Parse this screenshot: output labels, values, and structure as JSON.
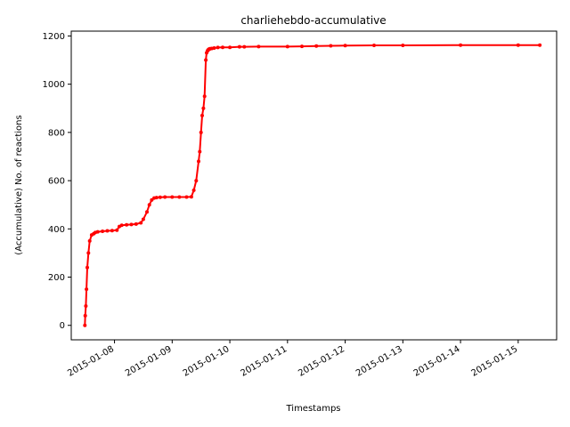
{
  "chart_data": {
    "type": "line",
    "title": "charliehebdo-accumulative",
    "xlabel": "Timestamps",
    "ylabel": "(Accumulative) No. of reactions",
    "x_tick_labels": [
      "2015-01-08",
      "2015-01-09",
      "2015-01-10",
      "2015-01-11",
      "2015-01-12",
      "2015-01-13",
      "2015-01-14",
      "2015-01-15"
    ],
    "y_ticks": [
      0,
      200,
      400,
      600,
      800,
      1000,
      1200
    ],
    "xlim": [
      "2015-01-07 06:00",
      "2015-01-15 16:00"
    ],
    "ylim": [
      -60,
      1220
    ],
    "grid": false,
    "legend": "none",
    "series": [
      {
        "color": "#ff0000",
        "marker": "dot",
        "x": [
          "2015-01-07 11:40",
          "2015-01-07 11:50",
          "2015-01-07 12:05",
          "2015-01-07 12:20",
          "2015-01-07 12:40",
          "2015-01-07 13:10",
          "2015-01-07 13:40",
          "2015-01-07 14:30",
          "2015-01-07 15:20",
          "2015-01-07 16:00",
          "2015-01-07 17:00",
          "2015-01-07 19:00",
          "2015-01-07 21:00",
          "2015-01-07 23:00",
          "2015-01-08 01:00",
          "2015-01-08 02:00",
          "2015-01-08 03:00",
          "2015-01-08 05:00",
          "2015-01-08 07:00",
          "2015-01-08 09:00",
          "2015-01-08 11:00",
          "2015-01-08 12:00",
          "2015-01-08 13:30",
          "2015-01-08 14:30",
          "2015-01-08 15:30",
          "2015-01-08 16:30",
          "2015-01-08 17:30",
          "2015-01-08 19:00",
          "2015-01-08 21:00",
          "2015-01-09 00:00",
          "2015-01-09 03:00",
          "2015-01-09 06:00",
          "2015-01-09 08:00",
          "2015-01-09 09:00",
          "2015-01-09 10:00",
          "2015-01-09 11:00",
          "2015-01-09 11:30",
          "2015-01-09 12:00",
          "2015-01-09 12:30",
          "2015-01-09 13:00",
          "2015-01-09 13:30",
          "2015-01-09 14:00",
          "2015-01-09 14:20",
          "2015-01-09 14:40",
          "2015-01-09 14:50",
          "2015-01-09 15:00",
          "2015-01-09 15:10",
          "2015-01-09 15:20",
          "2015-01-09 15:30",
          "2015-01-09 15:50",
          "2015-01-09 16:30",
          "2015-01-09 17:30",
          "2015-01-09 19:00",
          "2015-01-09 21:00",
          "2015-01-10 00:00",
          "2015-01-10 04:00",
          "2015-01-10 06:00",
          "2015-01-10 12:00",
          "2015-01-11 00:00",
          "2015-01-11 06:00",
          "2015-01-11 12:00",
          "2015-01-11 18:00",
          "2015-01-12 00:00",
          "2015-01-12 12:00",
          "2015-01-13 00:00",
          "2015-01-14 00:00",
          "2015-01-15 00:00",
          "2015-01-15 09:00"
        ],
        "y": [
          0,
          40,
          80,
          150,
          240,
          300,
          350,
          375,
          380,
          385,
          388,
          390,
          392,
          393,
          395,
          410,
          415,
          417,
          418,
          420,
          425,
          440,
          470,
          500,
          520,
          528,
          530,
          531,
          532,
          532,
          532,
          532,
          533,
          560,
          600,
          680,
          720,
          800,
          870,
          900,
          950,
          1100,
          1130,
          1138,
          1140,
          1142,
          1144,
          1145,
          1146,
          1147,
          1148,
          1150,
          1152,
          1153,
          1153,
          1155,
          1155,
          1156,
          1156,
          1157,
          1158,
          1159,
          1160,
          1161,
          1161,
          1162,
          1162,
          1162
        ]
      }
    ]
  }
}
